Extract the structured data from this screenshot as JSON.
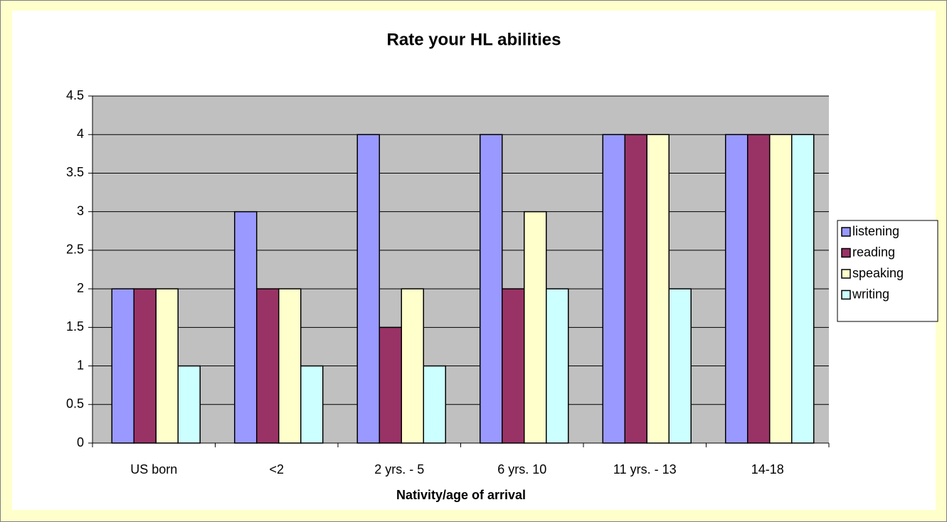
{
  "chart_data": {
    "type": "bar",
    "title": "Rate your HL abilities",
    "x_label": "Nativity/age of arrival",
    "categories": [
      "US born",
      "<2",
      "2 yrs. - 5",
      "6 yrs. 10",
      "11 yrs. - 13",
      "14-18"
    ],
    "series": [
      {
        "name": "listening",
        "color": "#9999ff",
        "values": [
          2,
          3,
          4,
          4,
          4,
          4
        ]
      },
      {
        "name": "reading",
        "color": "#993366",
        "values": [
          2,
          2,
          1.5,
          2,
          4,
          4
        ]
      },
      {
        "name": "speaking",
        "color": "#ffffcc",
        "values": [
          2,
          2,
          2,
          3,
          4,
          4
        ]
      },
      {
        "name": "writing",
        "color": "#ccffff",
        "values": [
          1,
          1,
          1,
          2,
          2,
          4
        ]
      }
    ],
    "ylim": [
      0,
      4.5
    ],
    "yticks": [
      0,
      0.5,
      1,
      1.5,
      2,
      2.5,
      3,
      3.5,
      4,
      4.5
    ],
    "grid": true,
    "legend": "right"
  }
}
